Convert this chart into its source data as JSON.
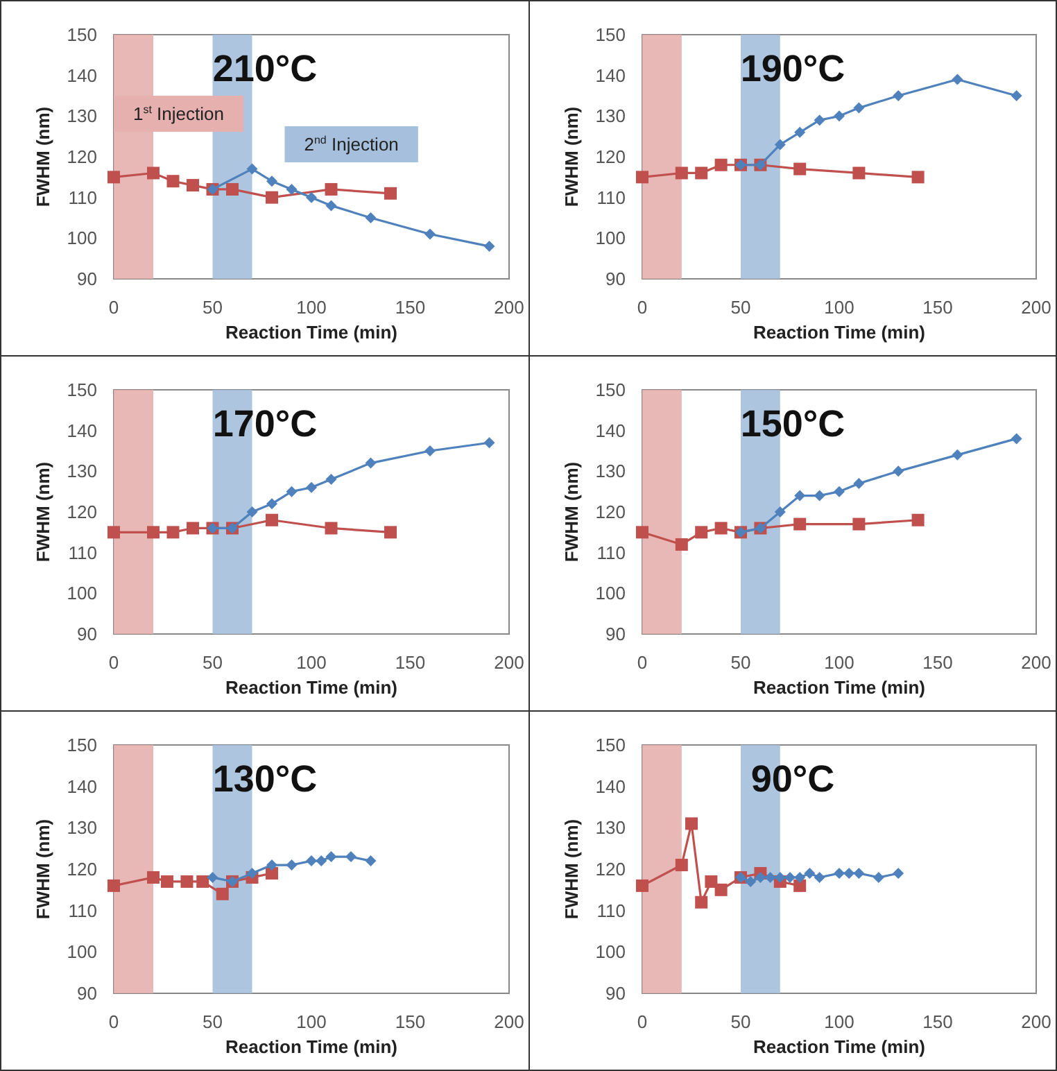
{
  "chart_data": [
    {
      "type": "line",
      "title": "210°C",
      "xlabel": "Reaction Time (min)",
      "ylabel": "FWHM (nm)",
      "xlim": [
        0,
        200
      ],
      "xticks": [
        0,
        50,
        100,
        150,
        200
      ],
      "ylim": [
        90,
        150
      ],
      "yticks": [
        90,
        100,
        110,
        120,
        130,
        140,
        150
      ],
      "bands": [
        {
          "axis": "x",
          "from": 0,
          "to": 20,
          "label": "1$^{st}$ Injection",
          "color": "#e6b0ae"
        },
        {
          "axis": "x",
          "from": 50,
          "to": 70,
          "label": "2$^{nd}$ Injection",
          "color": "#a5bfdd"
        }
      ],
      "series": [
        {
          "color": "#4f81bd",
          "marker": "diamond",
          "x": [
            50,
            70,
            80,
            90,
            100,
            110,
            130,
            160,
            190
          ],
          "values": [
            112,
            117,
            114,
            112,
            110,
            108,
            105,
            101,
            98
          ]
        },
        {
          "color": "#c0504d",
          "marker": "square",
          "x": [
            0,
            20,
            30,
            40,
            50,
            60,
            80,
            110,
            140
          ],
          "values": [
            115,
            116,
            114,
            113,
            112,
            112,
            110,
            112,
            111
          ]
        }
      ]
    },
    {
      "type": "line",
      "title": "190°C",
      "xlabel": "Reaction Time (min)",
      "ylabel": "FWHM (nm)",
      "xlim": [
        0,
        200
      ],
      "xticks": [
        0,
        50,
        100,
        150,
        200
      ],
      "ylim": [
        90,
        150
      ],
      "yticks": [
        90,
        100,
        110,
        120,
        130,
        140,
        150
      ],
      "bands": [
        {
          "axis": "x",
          "from": 0,
          "to": 20,
          "color": "#e6b0ae"
        },
        {
          "axis": "x",
          "from": 50,
          "to": 70,
          "color": "#a5bfdd"
        }
      ],
      "series": [
        {
          "color": "#4f81bd",
          "marker": "diamond",
          "x": [
            50,
            60,
            70,
            80,
            90,
            100,
            110,
            130,
            160,
            190
          ],
          "values": [
            118,
            118,
            123,
            126,
            129,
            130,
            132,
            135,
            139,
            135
          ]
        },
        {
          "color": "#c0504d",
          "marker": "square",
          "x": [
            0,
            20,
            30,
            40,
            50,
            60,
            80,
            110,
            140
          ],
          "values": [
            115,
            116,
            116,
            118,
            118,
            118,
            117,
            116,
            115
          ]
        }
      ]
    },
    {
      "type": "line",
      "title": "170°C",
      "xlabel": "Reaction Time (min)",
      "ylabel": "FWHM (nm)",
      "xlim": [
        0,
        200
      ],
      "xticks": [
        0,
        50,
        100,
        150,
        200
      ],
      "ylim": [
        90,
        150
      ],
      "yticks": [
        90,
        100,
        110,
        120,
        130,
        140,
        150
      ],
      "bands": [
        {
          "axis": "x",
          "from": 0,
          "to": 20,
          "color": "#e6b0ae"
        },
        {
          "axis": "x",
          "from": 50,
          "to": 70,
          "color": "#a5bfdd"
        }
      ],
      "series": [
        {
          "color": "#4f81bd",
          "marker": "diamond",
          "x": [
            50,
            60,
            70,
            80,
            90,
            100,
            110,
            130,
            160,
            190
          ],
          "values": [
            116,
            116,
            120,
            122,
            125,
            126,
            128,
            132,
            135,
            137
          ]
        },
        {
          "color": "#c0504d",
          "marker": "square",
          "x": [
            0,
            20,
            30,
            40,
            50,
            60,
            80,
            110,
            140
          ],
          "values": [
            115,
            115,
            115,
            116,
            116,
            116,
            118,
            116,
            115
          ]
        }
      ]
    },
    {
      "type": "line",
      "title": "150°C",
      "xlabel": "Reaction Time (min)",
      "ylabel": "FWHM (nm)",
      "xlim": [
        0,
        200
      ],
      "xticks": [
        0,
        50,
        100,
        150,
        200
      ],
      "ylim": [
        90,
        150
      ],
      "yticks": [
        90,
        100,
        110,
        120,
        130,
        140,
        150
      ],
      "bands": [
        {
          "axis": "x",
          "from": 0,
          "to": 20,
          "color": "#e6b0ae"
        },
        {
          "axis": "x",
          "from": 50,
          "to": 70,
          "color": "#a5bfdd"
        }
      ],
      "series": [
        {
          "color": "#4f81bd",
          "marker": "diamond",
          "x": [
            50,
            60,
            70,
            80,
            90,
            100,
            110,
            130,
            160,
            190
          ],
          "values": [
            115,
            116,
            120,
            124,
            124,
            125,
            127,
            130,
            134,
            138
          ]
        },
        {
          "color": "#c0504d",
          "marker": "square",
          "x": [
            0,
            20,
            30,
            40,
            50,
            60,
            80,
            110,
            140
          ],
          "values": [
            115,
            112,
            115,
            116,
            115,
            116,
            117,
            117,
            118
          ]
        }
      ]
    },
    {
      "type": "line",
      "title": "130°C",
      "xlabel": "Reaction Time (min)",
      "ylabel": "FWHM (nm)",
      "xlim": [
        0,
        200
      ],
      "xticks": [
        0,
        50,
        100,
        150,
        200
      ],
      "ylim": [
        90,
        150
      ],
      "yticks": [
        90,
        100,
        110,
        120,
        130,
        140,
        150
      ],
      "bands": [
        {
          "axis": "x",
          "from": 0,
          "to": 20,
          "color": "#e6b0ae"
        },
        {
          "axis": "x",
          "from": 50,
          "to": 70,
          "color": "#a5bfdd"
        }
      ],
      "series": [
        {
          "color": "#4f81bd",
          "marker": "diamond",
          "x": [
            50,
            60,
            70,
            80,
            90,
            100,
            105,
            110,
            120,
            130
          ],
          "values": [
            118,
            117,
            119,
            121,
            121,
            122,
            122,
            123,
            123,
            122
          ]
        },
        {
          "color": "#c0504d",
          "marker": "square",
          "x": [
            0,
            20,
            27,
            37,
            45,
            55,
            60,
            70,
            80
          ],
          "values": [
            116,
            118,
            117,
            117,
            117,
            114,
            117,
            118,
            119
          ]
        }
      ]
    },
    {
      "type": "line",
      "title": "90°C",
      "xlabel": "Reaction Time (min)",
      "ylabel": "FWHM (nm)",
      "xlim": [
        0,
        200
      ],
      "xticks": [
        0,
        50,
        100,
        150,
        200
      ],
      "ylim": [
        90,
        150
      ],
      "yticks": [
        90,
        100,
        110,
        120,
        130,
        140,
        150
      ],
      "bands": [
        {
          "axis": "x",
          "from": 0,
          "to": 20,
          "color": "#e6b0ae"
        },
        {
          "axis": "x",
          "from": 50,
          "to": 70,
          "color": "#a5bfdd"
        }
      ],
      "series": [
        {
          "color": "#4f81bd",
          "marker": "diamond",
          "x": [
            50,
            55,
            60,
            65,
            70,
            75,
            80,
            85,
            90,
            100,
            105,
            110,
            120,
            130
          ],
          "values": [
            118,
            117,
            118,
            118,
            118,
            118,
            118,
            119,
            118,
            119,
            119,
            119,
            118,
            119
          ]
        },
        {
          "color": "#c0504d",
          "marker": "square",
          "x": [
            0,
            20,
            25,
            30,
            35,
            40,
            50,
            60,
            70,
            80
          ],
          "values": [
            116,
            121,
            131,
            112,
            117,
            115,
            118,
            119,
            117,
            116
          ]
        }
      ]
    }
  ]
}
